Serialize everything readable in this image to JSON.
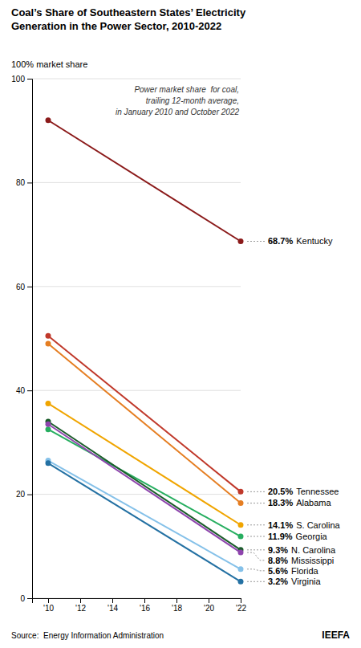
{
  "chart_data": {
    "type": "line",
    "title": "Coal’s Share of Southeastern States’ Electricity",
    "subtitle": "Generation in the Power Sector, 2010-2022",
    "ylabel": "100% market share",
    "annotations": [
      "Power market share  for coal,\ntrailing 12-month average,\nin January 2010 and October 2022",
      "Source:  Energy Information Administration",
      "IEEFA"
    ],
    "x": [
      2010,
      2022
    ],
    "xlim": [
      2009,
      2022
    ],
    "xticks": [
      {
        "value": 2010,
        "label": "'10"
      },
      {
        "value": 2012,
        "label": "'12"
      },
      {
        "value": 2014,
        "label": "'14"
      },
      {
        "value": 2016,
        "label": "'16"
      },
      {
        "value": 2018,
        "label": "'18"
      },
      {
        "value": 2020,
        "label": "'20"
      },
      {
        "value": 2022,
        "label": "'22"
      }
    ],
    "ylim": [
      0,
      100
    ],
    "yticks": [
      0,
      20,
      40,
      60,
      80,
      100
    ],
    "grid": true,
    "marker": "circle",
    "data_labels": true,
    "series": [
      {
        "name": "Kentucky",
        "color": "#8B1A1A",
        "values": [
          92.0,
          68.7
        ],
        "value_labels": [
          null,
          "68.7%"
        ]
      },
      {
        "name": "Tennessee",
        "color": "#C0392B",
        "values": [
          50.5,
          20.5
        ],
        "value_labels": [
          null,
          "20.5%"
        ]
      },
      {
        "name": "Alabama",
        "color": "#E57E22",
        "values": [
          49.0,
          18.3
        ],
        "value_labels": [
          null,
          "18.3%"
        ]
      },
      {
        "name": "S. Carolina",
        "color": "#F0A500",
        "values": [
          37.5,
          14.1
        ],
        "value_labels": [
          null,
          "14.1%"
        ]
      },
      {
        "name": "Georgia",
        "color": "#27AE60",
        "values": [
          32.5,
          11.9
        ],
        "value_labels": [
          null,
          "11.9%"
        ]
      },
      {
        "name": "N. Carolina",
        "color": "#1A5C2A",
        "values": [
          34.0,
          9.3
        ],
        "value_labels": [
          null,
          "9.3%"
        ]
      },
      {
        "name": "Mississippi",
        "color": "#8E44AD",
        "values": [
          33.5,
          8.8
        ],
        "value_labels": [
          null,
          "8.8%"
        ]
      },
      {
        "name": "Florida",
        "color": "#85C1E9",
        "values": [
          26.5,
          5.6
        ],
        "value_labels": [
          null,
          "5.6%"
        ]
      },
      {
        "name": "Virginia",
        "color": "#2471A3",
        "values": [
          26.0,
          3.2
        ],
        "value_labels": [
          null,
          "3.2%"
        ]
      }
    ]
  }
}
